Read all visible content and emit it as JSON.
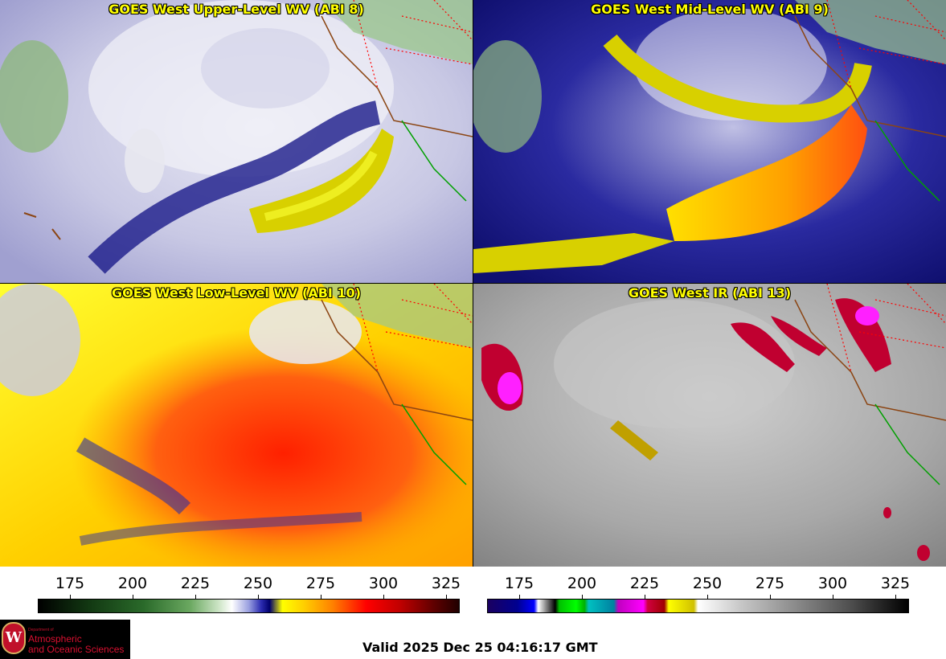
{
  "panels": [
    {
      "title": "GOES West Upper-Level WV (ABI 8)"
    },
    {
      "title": "GOES West Mid-Level WV (ABI 9)"
    },
    {
      "title": "GOES West Low-Level WV (ABI 10)"
    },
    {
      "title": "GOES West IR (ABI 13)"
    }
  ],
  "colorbars": {
    "left": {
      "ticks": [
        "175",
        "200",
        "225",
        "250",
        "275",
        "300",
        "325"
      ]
    },
    "right": {
      "ticks": [
        "175",
        "200",
        "225",
        "250",
        "275",
        "300",
        "325"
      ]
    }
  },
  "logo": {
    "dept": "Department of",
    "line1": "Atmospheric",
    "line2": "and Oceanic Sciences",
    "seal_letter": "W"
  },
  "footer": {
    "valid_time": "Valid 2025 Dec 25 04:16:17 GMT"
  },
  "colors": {
    "title_text": "#ffff00",
    "state_borders": "#ff0000",
    "coastline": "#8b4513",
    "mexico_coast": "#00a000"
  }
}
